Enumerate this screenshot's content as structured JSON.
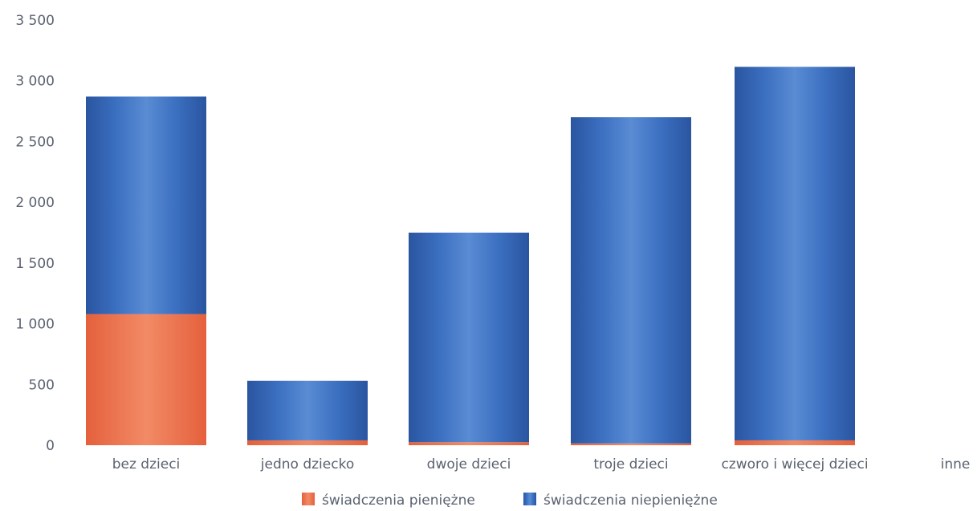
{
  "chart_data": {
    "type": "bar",
    "stacked": true,
    "categories": [
      "bez dzieci",
      "jedno dziecko",
      "dwoje dzieci",
      "troje dzieci",
      "czworo i więcej dzieci",
      "inne"
    ],
    "series": [
      {
        "name": "świadczenia pieniężne",
        "color": "#e8603c",
        "values": [
          1080,
          40,
          25,
          15,
          40,
          0
        ]
      },
      {
        "name": "świadczenia niepieniężne",
        "color": "#2d5fa8",
        "values": [
          1790,
          490,
          1725,
          2685,
          3075,
          0
        ]
      }
    ],
    "yticks": [
      "0",
      "500",
      "1 000",
      "1 500",
      "2 000",
      "2 500",
      "3 000",
      "3 500"
    ],
    "ylim": [
      0,
      3500
    ],
    "grid": false,
    "legend_position": "bottom-center"
  }
}
